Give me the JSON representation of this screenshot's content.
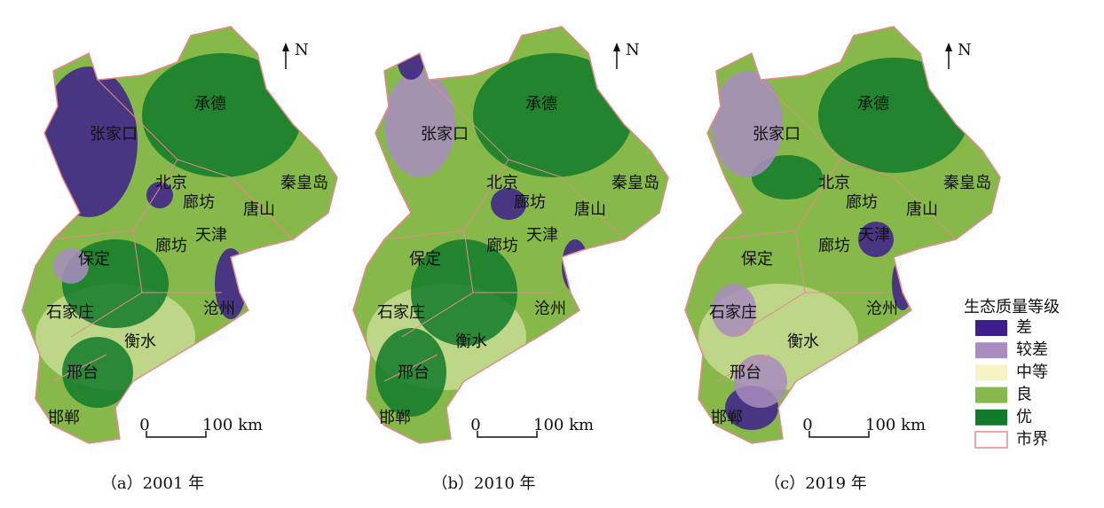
{
  "panels": [
    {
      "caption": "（a）2001 年",
      "north": "N",
      "scale_start": "0",
      "scale_end": "100 km",
      "cities": [
        "承德",
        "张家口",
        "北京",
        "秦皇岛",
        "廊坊",
        "唐山",
        "天津",
        "廊坊",
        "保定",
        "沧州",
        "石家庄",
        "衡水",
        "邢台",
        "邯郸"
      ]
    },
    {
      "caption": "（b）2010 年",
      "north": "N",
      "scale_start": "0",
      "scale_end": "100 km",
      "cities": [
        "承德",
        "张家口",
        "北京",
        "秦皇岛",
        "廊坊",
        "唐山",
        "天津",
        "廊坊",
        "保定",
        "沧州",
        "石家庄",
        "衡水",
        "邢台",
        "邯郸"
      ]
    },
    {
      "caption": "（c）2019 年",
      "north": "N",
      "scale_start": "0",
      "scale_end": "100 km",
      "cities": [
        "承德",
        "张家口",
        "北京",
        "秦皇岛",
        "廊坊",
        "唐山",
        "天津",
        "廊坊",
        "保定",
        "沧州",
        "石家庄",
        "衡水",
        "邢台",
        "邯郸"
      ]
    }
  ],
  "legend": {
    "title": "生态质量等级",
    "items": [
      {
        "label": "差",
        "color": "#3d1f8c"
      },
      {
        "label": "较差",
        "color": "#a98cc0"
      },
      {
        "label": "中等",
        "color": "#f6f4c4"
      },
      {
        "label": "良",
        "color": "#86b94a"
      },
      {
        "label": "优",
        "color": "#127a2b"
      },
      {
        "label": "市界",
        "color": "#e58a8a"
      }
    ]
  }
}
